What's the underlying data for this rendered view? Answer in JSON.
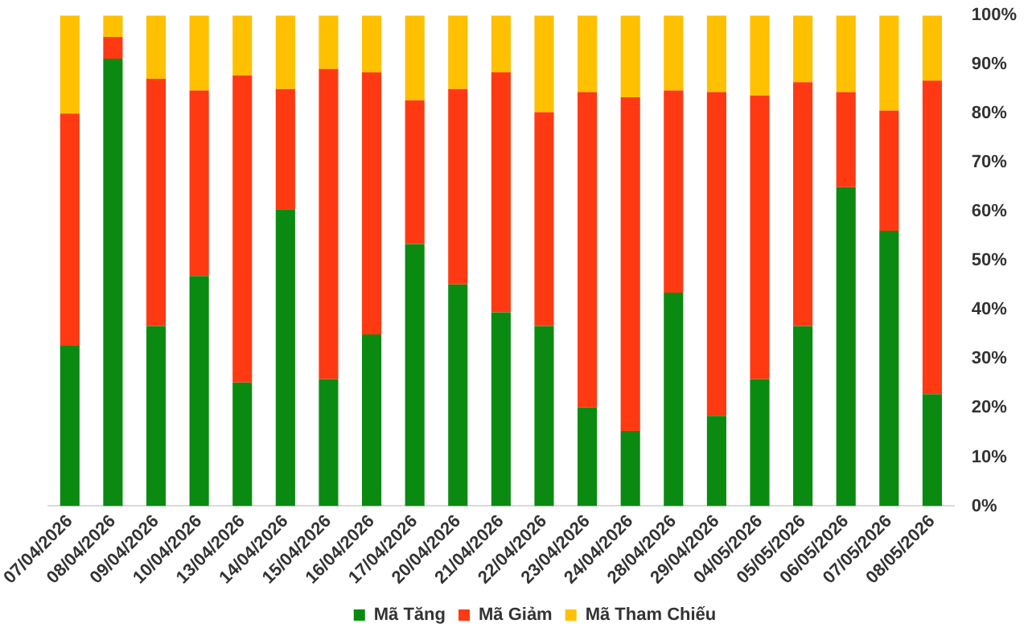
{
  "chart_data": {
    "type": "bar",
    "stacked": true,
    "categories": [
      "07/04/2026",
      "08/04/2026",
      "09/04/2026",
      "10/04/2026",
      "13/04/2026",
      "14/04/2026",
      "15/04/2026",
      "16/04/2026",
      "17/04/2026",
      "20/04/2026",
      "21/04/2026",
      "22/04/2026",
      "23/04/2026",
      "24/04/2026",
      "28/04/2026",
      "29/04/2026",
      "04/05/2026",
      "05/05/2026",
      "06/05/2026",
      "07/05/2026",
      "08/05/2026"
    ],
    "series": [
      {
        "name": "Mã Tăng",
        "color": "#0b8a12",
        "values": [
          32.7,
          91.2,
          36.7,
          46.9,
          25.2,
          60.5,
          25.9,
          35.0,
          53.4,
          45.2,
          39.5,
          36.7,
          20.1,
          15.3,
          43.5,
          18.4,
          25.9,
          36.7,
          65.0,
          56.1,
          22.8
        ]
      },
      {
        "name": "Mã Giảm",
        "color": "#ff3a12",
        "values": [
          47.3,
          4.4,
          50.4,
          37.8,
          62.6,
          24.5,
          63.2,
          53.4,
          29.3,
          39.8,
          48.9,
          43.6,
          64.3,
          68.0,
          41.2,
          66.0,
          57.8,
          49.7,
          19.4,
          24.5,
          63.9
        ]
      },
      {
        "name": "Mã Tham Chiếu",
        "color": "#ffc000",
        "values": [
          20.0,
          4.4,
          12.9,
          15.3,
          12.2,
          15.0,
          10.9,
          11.6,
          17.3,
          15.0,
          11.6,
          19.7,
          15.6,
          16.7,
          15.3,
          15.6,
          16.3,
          13.6,
          15.6,
          19.4,
          13.3
        ]
      }
    ],
    "ylim": [
      0,
      100
    ],
    "yticks": [
      {
        "value": 0,
        "label": "0%"
      },
      {
        "value": 10,
        "label": "10%"
      },
      {
        "value": 20,
        "label": "20%"
      },
      {
        "value": 30,
        "label": "30%"
      },
      {
        "value": 40,
        "label": "40%"
      },
      {
        "value": 50,
        "label": "50%"
      },
      {
        "value": 60,
        "label": "60%"
      },
      {
        "value": 70,
        "label": "70%"
      },
      {
        "value": 80,
        "label": "80%"
      },
      {
        "value": 90,
        "label": "90%"
      },
      {
        "value": 100,
        "label": "100%"
      }
    ],
    "grid": false,
    "legend": "bottom"
  }
}
